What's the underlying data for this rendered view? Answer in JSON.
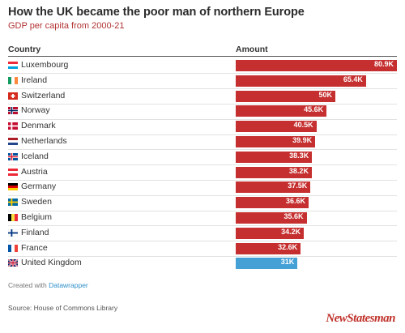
{
  "header": {
    "title": "How the UK became the poor man of northern Europe",
    "subtitle": "GDP per capita from 2000-21"
  },
  "table": {
    "col_country": "Country",
    "col_amount": "Amount"
  },
  "chart_data": {
    "type": "bar",
    "title": "How the UK became the poor man of northern Europe",
    "subtitle": "GDP per capita from 2000-21",
    "xlabel": "",
    "ylabel": "",
    "categories": [
      "Luxembourg",
      "Ireland",
      "Switzerland",
      "Norway",
      "Denmark",
      "Netherlands",
      "Iceland",
      "Austria",
      "Germany",
      "Sweden",
      "Belgium",
      "Finland",
      "France",
      "United Kingdom"
    ],
    "values": [
      80900,
      65400,
      50000,
      45600,
      40500,
      39900,
      38300,
      38200,
      37500,
      36600,
      35600,
      34200,
      32600,
      31000
    ],
    "value_labels": [
      "80.9K",
      "65.4K",
      "50K",
      "45.6K",
      "40.5K",
      "39.9K",
      "38.3K",
      "38.2K",
      "37.5K",
      "36.6K",
      "35.6K",
      "34.2K",
      "32.6K",
      "31K"
    ],
    "flag_icons": [
      "luxembourg-flag-icon",
      "ireland-flag-icon",
      "switzerland-flag-icon",
      "norway-flag-icon",
      "denmark-flag-icon",
      "netherlands-flag-icon",
      "iceland-flag-icon",
      "austria-flag-icon",
      "germany-flag-icon",
      "sweden-flag-icon",
      "belgium-flag-icon",
      "finland-flag-icon",
      "france-flag-icon",
      "uk-flag-icon"
    ],
    "colors": {
      "default": "#c62f2f",
      "highlight": "#45a0d6",
      "highlight_category": "United Kingdom"
    },
    "xlim": [
      0,
      80900
    ],
    "grid": false,
    "legend": "none"
  },
  "footer": {
    "credit_prefix": "Created with",
    "credit_link": "Datawrapper",
    "source": "Source: House of Commons Library",
    "logo": "NewStatesman"
  }
}
